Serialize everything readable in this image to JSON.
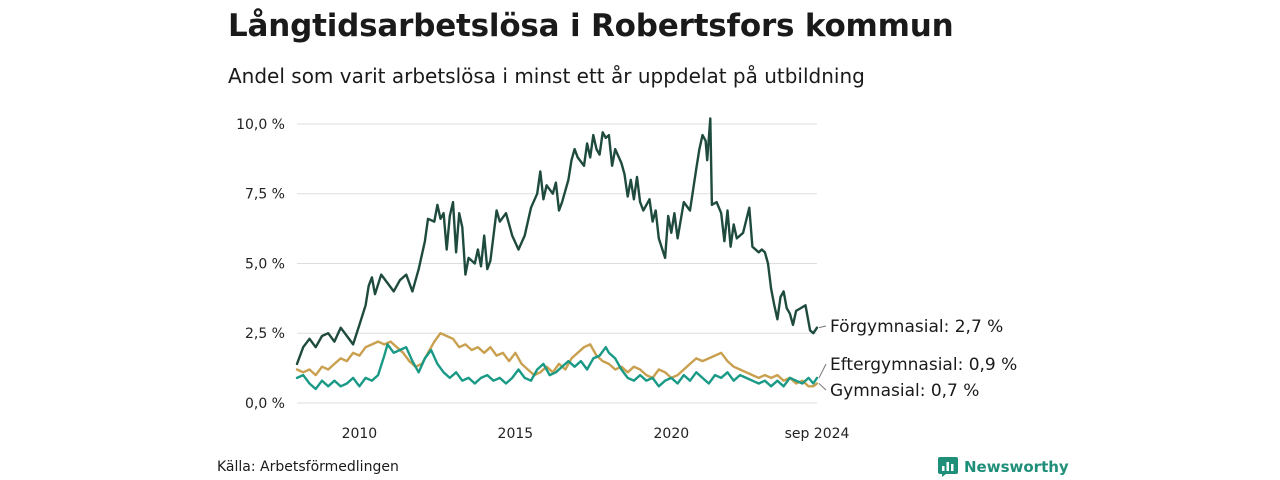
{
  "header": {
    "title": "Långtidsarbetslösa i Robertsfors kommun",
    "subtitle": "Andel som varit arbetslösa i minst ett år uppdelat på utbildning"
  },
  "footer": {
    "source": "Källa: Arbetsförmedlingen",
    "brand": "Newsworthy",
    "brand_icon": "chart-badge-icon"
  },
  "colors": {
    "forgymnasial": "#1f4b3f",
    "eftergymnasial": "#1a9a86",
    "gymnasial": "#c9a04f",
    "grid": "#dddddd"
  },
  "chart_data": {
    "type": "line",
    "ylim": [
      0,
      10.5
    ],
    "y_ticks": [
      {
        "value": 0,
        "label": "0,0 %"
      },
      {
        "value": 2.5,
        "label": "2,5 %"
      },
      {
        "value": 5,
        "label": "5,0 %"
      },
      {
        "value": 7.5,
        "label": "7,5 %"
      },
      {
        "value": 10,
        "label": "10,0 %"
      }
    ],
    "x_ticks": [
      {
        "value": 2010.0,
        "label": "2010"
      },
      {
        "value": 2015.0,
        "label": "2015"
      },
      {
        "value": 2020.0,
        "label": "2020"
      },
      {
        "value": 2024.67,
        "label": "sep 2024"
      }
    ],
    "x_domain": [
      2008.0,
      2024.67
    ],
    "series": [
      {
        "name": "Förgymnasial",
        "end_label": "Förgymnasial: 2,7 %",
        "color_key": "forgymnasial",
        "points": [
          [
            2008.0,
            1.4
          ],
          [
            2008.2,
            2.0
          ],
          [
            2008.4,
            2.3
          ],
          [
            2008.6,
            2.0
          ],
          [
            2008.8,
            2.4
          ],
          [
            2009.0,
            2.5
          ],
          [
            2009.2,
            2.2
          ],
          [
            2009.4,
            2.7
          ],
          [
            2009.6,
            2.4
          ],
          [
            2009.8,
            2.1
          ],
          [
            2010.0,
            2.8
          ],
          [
            2010.2,
            3.5
          ],
          [
            2010.3,
            4.2
          ],
          [
            2010.4,
            4.5
          ],
          [
            2010.5,
            3.9
          ],
          [
            2010.7,
            4.6
          ],
          [
            2010.9,
            4.3
          ],
          [
            2011.1,
            4.0
          ],
          [
            2011.3,
            4.4
          ],
          [
            2011.5,
            4.6
          ],
          [
            2011.7,
            4.0
          ],
          [
            2011.9,
            4.8
          ],
          [
            2012.1,
            5.8
          ],
          [
            2012.2,
            6.6
          ],
          [
            2012.4,
            6.5
          ],
          [
            2012.5,
            7.1
          ],
          [
            2012.6,
            6.6
          ],
          [
            2012.7,
            6.8
          ],
          [
            2012.8,
            5.5
          ],
          [
            2012.9,
            6.7
          ],
          [
            2013.0,
            7.2
          ],
          [
            2013.1,
            5.4
          ],
          [
            2013.2,
            6.8
          ],
          [
            2013.3,
            6.3
          ],
          [
            2013.4,
            4.6
          ],
          [
            2013.5,
            5.2
          ],
          [
            2013.7,
            5.0
          ],
          [
            2013.8,
            5.5
          ],
          [
            2013.9,
            4.9
          ],
          [
            2014.0,
            6.0
          ],
          [
            2014.1,
            4.8
          ],
          [
            2014.2,
            5.1
          ],
          [
            2014.3,
            6.0
          ],
          [
            2014.4,
            6.9
          ],
          [
            2014.5,
            6.5
          ],
          [
            2014.7,
            6.8
          ],
          [
            2014.9,
            6.0
          ],
          [
            2015.1,
            5.5
          ],
          [
            2015.3,
            6.0
          ],
          [
            2015.5,
            7.0
          ],
          [
            2015.7,
            7.5
          ],
          [
            2015.8,
            8.3
          ],
          [
            2015.9,
            7.3
          ],
          [
            2016.0,
            7.8
          ],
          [
            2016.2,
            7.5
          ],
          [
            2016.3,
            7.9
          ],
          [
            2016.4,
            6.9
          ],
          [
            2016.5,
            7.2
          ],
          [
            2016.7,
            8.0
          ],
          [
            2016.8,
            8.7
          ],
          [
            2016.9,
            9.1
          ],
          [
            2017.0,
            8.8
          ],
          [
            2017.2,
            8.5
          ],
          [
            2017.3,
            9.3
          ],
          [
            2017.4,
            8.8
          ],
          [
            2017.5,
            9.6
          ],
          [
            2017.6,
            9.1
          ],
          [
            2017.7,
            8.9
          ],
          [
            2017.8,
            9.7
          ],
          [
            2017.9,
            9.5
          ],
          [
            2018.0,
            9.6
          ],
          [
            2018.1,
            8.5
          ],
          [
            2018.2,
            9.1
          ],
          [
            2018.4,
            8.6
          ],
          [
            2018.5,
            8.2
          ],
          [
            2018.6,
            7.4
          ],
          [
            2018.7,
            8.0
          ],
          [
            2018.8,
            7.3
          ],
          [
            2018.9,
            8.1
          ],
          [
            2019.0,
            7.2
          ],
          [
            2019.1,
            6.9
          ],
          [
            2019.3,
            7.3
          ],
          [
            2019.4,
            6.5
          ],
          [
            2019.5,
            6.9
          ],
          [
            2019.6,
            5.9
          ],
          [
            2019.8,
            5.2
          ],
          [
            2019.9,
            6.7
          ],
          [
            2020.0,
            6.1
          ],
          [
            2020.1,
            6.8
          ],
          [
            2020.2,
            5.9
          ],
          [
            2020.4,
            7.2
          ],
          [
            2020.6,
            6.9
          ],
          [
            2020.8,
            8.4
          ],
          [
            2020.9,
            9.1
          ],
          [
            2021.0,
            9.6
          ],
          [
            2021.1,
            9.4
          ],
          [
            2021.15,
            8.7
          ],
          [
            2021.25,
            10.2
          ],
          [
            2021.3,
            7.1
          ],
          [
            2021.45,
            7.2
          ],
          [
            2021.6,
            6.8
          ],
          [
            2021.7,
            5.8
          ],
          [
            2021.8,
            6.9
          ],
          [
            2021.9,
            5.6
          ],
          [
            2022.0,
            6.4
          ],
          [
            2022.1,
            5.9
          ],
          [
            2022.3,
            6.1
          ],
          [
            2022.5,
            7.0
          ],
          [
            2022.6,
            5.6
          ],
          [
            2022.8,
            5.4
          ],
          [
            2022.9,
            5.5
          ],
          [
            2023.0,
            5.4
          ],
          [
            2023.1,
            5.0
          ],
          [
            2023.2,
            4.1
          ],
          [
            2023.3,
            3.5
          ],
          [
            2023.4,
            3.0
          ],
          [
            2023.5,
            3.8
          ],
          [
            2023.6,
            4.0
          ],
          [
            2023.7,
            3.4
          ],
          [
            2023.8,
            3.2
          ],
          [
            2023.9,
            2.8
          ],
          [
            2024.0,
            3.3
          ],
          [
            2024.15,
            3.4
          ],
          [
            2024.3,
            3.5
          ],
          [
            2024.45,
            2.6
          ],
          [
            2024.55,
            2.5
          ],
          [
            2024.67,
            2.7
          ]
        ]
      },
      {
        "name": "Eftergymnasial",
        "end_label": "Eftergymnasial: 0,9 %",
        "color_key": "eftergymnasial",
        "points": [
          [
            2008.0,
            0.9
          ],
          [
            2008.2,
            1.0
          ],
          [
            2008.4,
            0.7
          ],
          [
            2008.6,
            0.5
          ],
          [
            2008.8,
            0.8
          ],
          [
            2009.0,
            0.6
          ],
          [
            2009.2,
            0.8
          ],
          [
            2009.4,
            0.6
          ],
          [
            2009.6,
            0.7
          ],
          [
            2009.8,
            0.9
          ],
          [
            2010.0,
            0.6
          ],
          [
            2010.2,
            0.9
          ],
          [
            2010.4,
            0.8
          ],
          [
            2010.6,
            1.0
          ],
          [
            2010.8,
            1.7
          ],
          [
            2010.9,
            2.1
          ],
          [
            2011.1,
            1.8
          ],
          [
            2011.3,
            1.9
          ],
          [
            2011.5,
            2.0
          ],
          [
            2011.7,
            1.5
          ],
          [
            2011.9,
            1.1
          ],
          [
            2012.1,
            1.6
          ],
          [
            2012.3,
            1.9
          ],
          [
            2012.5,
            1.4
          ],
          [
            2012.7,
            1.1
          ],
          [
            2012.9,
            0.9
          ],
          [
            2013.1,
            1.1
          ],
          [
            2013.3,
            0.8
          ],
          [
            2013.5,
            0.9
          ],
          [
            2013.7,
            0.7
          ],
          [
            2013.9,
            0.9
          ],
          [
            2014.1,
            1.0
          ],
          [
            2014.3,
            0.8
          ],
          [
            2014.5,
            0.9
          ],
          [
            2014.7,
            0.7
          ],
          [
            2014.9,
            0.9
          ],
          [
            2015.1,
            1.2
          ],
          [
            2015.3,
            0.9
          ],
          [
            2015.5,
            0.8
          ],
          [
            2015.7,
            1.2
          ],
          [
            2015.9,
            1.4
          ],
          [
            2016.1,
            1.0
          ],
          [
            2016.3,
            1.1
          ],
          [
            2016.5,
            1.3
          ],
          [
            2016.7,
            1.5
          ],
          [
            2016.9,
            1.3
          ],
          [
            2017.1,
            1.5
          ],
          [
            2017.3,
            1.2
          ],
          [
            2017.5,
            1.6
          ],
          [
            2017.7,
            1.7
          ],
          [
            2017.9,
            2.0
          ],
          [
            2018.0,
            1.8
          ],
          [
            2018.2,
            1.6
          ],
          [
            2018.4,
            1.2
          ],
          [
            2018.6,
            0.9
          ],
          [
            2018.8,
            0.8
          ],
          [
            2019.0,
            1.0
          ],
          [
            2019.2,
            0.8
          ],
          [
            2019.4,
            0.9
          ],
          [
            2019.6,
            0.6
          ],
          [
            2019.8,
            0.8
          ],
          [
            2020.0,
            0.9
          ],
          [
            2020.2,
            0.7
          ],
          [
            2020.4,
            1.0
          ],
          [
            2020.6,
            0.8
          ],
          [
            2020.8,
            1.1
          ],
          [
            2021.0,
            0.9
          ],
          [
            2021.2,
            0.7
          ],
          [
            2021.4,
            1.0
          ],
          [
            2021.6,
            0.9
          ],
          [
            2021.8,
            1.1
          ],
          [
            2022.0,
            0.8
          ],
          [
            2022.2,
            1.0
          ],
          [
            2022.4,
            0.9
          ],
          [
            2022.6,
            0.8
          ],
          [
            2022.8,
            0.7
          ],
          [
            2023.0,
            0.8
          ],
          [
            2023.2,
            0.6
          ],
          [
            2023.4,
            0.8
          ],
          [
            2023.6,
            0.6
          ],
          [
            2023.8,
            0.9
          ],
          [
            2024.0,
            0.8
          ],
          [
            2024.2,
            0.7
          ],
          [
            2024.4,
            0.9
          ],
          [
            2024.55,
            0.7
          ],
          [
            2024.67,
            0.9
          ]
        ]
      },
      {
        "name": "Gymnasial",
        "end_label": "Gymnasial: 0,7 %",
        "color_key": "gymnasial",
        "points": [
          [
            2008.0,
            1.2
          ],
          [
            2008.2,
            1.1
          ],
          [
            2008.4,
            1.2
          ],
          [
            2008.6,
            1.0
          ],
          [
            2008.8,
            1.3
          ],
          [
            2009.0,
            1.2
          ],
          [
            2009.2,
            1.4
          ],
          [
            2009.4,
            1.6
          ],
          [
            2009.6,
            1.5
          ],
          [
            2009.8,
            1.8
          ],
          [
            2010.0,
            1.7
          ],
          [
            2010.2,
            2.0
          ],
          [
            2010.4,
            2.1
          ],
          [
            2010.6,
            2.2
          ],
          [
            2010.8,
            2.1
          ],
          [
            2011.0,
            2.2
          ],
          [
            2011.2,
            2.0
          ],
          [
            2011.4,
            1.8
          ],
          [
            2011.6,
            1.5
          ],
          [
            2011.8,
            1.3
          ],
          [
            2012.0,
            1.4
          ],
          [
            2012.2,
            1.8
          ],
          [
            2012.4,
            2.2
          ],
          [
            2012.6,
            2.5
          ],
          [
            2012.8,
            2.4
          ],
          [
            2013.0,
            2.3
          ],
          [
            2013.2,
            2.0
          ],
          [
            2013.4,
            2.1
          ],
          [
            2013.6,
            1.9
          ],
          [
            2013.8,
            2.0
          ],
          [
            2014.0,
            1.8
          ],
          [
            2014.2,
            2.0
          ],
          [
            2014.4,
            1.7
          ],
          [
            2014.6,
            1.8
          ],
          [
            2014.8,
            1.5
          ],
          [
            2015.0,
            1.8
          ],
          [
            2015.2,
            1.4
          ],
          [
            2015.4,
            1.2
          ],
          [
            2015.6,
            1.0
          ],
          [
            2015.8,
            1.1
          ],
          [
            2016.0,
            1.3
          ],
          [
            2016.2,
            1.1
          ],
          [
            2016.4,
            1.4
          ],
          [
            2016.6,
            1.2
          ],
          [
            2016.8,
            1.6
          ],
          [
            2017.0,
            1.8
          ],
          [
            2017.2,
            2.0
          ],
          [
            2017.4,
            2.1
          ],
          [
            2017.6,
            1.7
          ],
          [
            2017.8,
            1.5
          ],
          [
            2018.0,
            1.4
          ],
          [
            2018.2,
            1.2
          ],
          [
            2018.4,
            1.3
          ],
          [
            2018.6,
            1.1
          ],
          [
            2018.8,
            1.3
          ],
          [
            2019.0,
            1.2
          ],
          [
            2019.2,
            1.0
          ],
          [
            2019.4,
            0.9
          ],
          [
            2019.6,
            1.2
          ],
          [
            2019.8,
            1.1
          ],
          [
            2020.0,
            0.9
          ],
          [
            2020.2,
            1.0
          ],
          [
            2020.4,
            1.2
          ],
          [
            2020.6,
            1.4
          ],
          [
            2020.8,
            1.6
          ],
          [
            2021.0,
            1.5
          ],
          [
            2021.2,
            1.6
          ],
          [
            2021.4,
            1.7
          ],
          [
            2021.6,
            1.8
          ],
          [
            2021.8,
            1.5
          ],
          [
            2022.0,
            1.3
          ],
          [
            2022.2,
            1.2
          ],
          [
            2022.4,
            1.1
          ],
          [
            2022.6,
            1.0
          ],
          [
            2022.8,
            0.9
          ],
          [
            2023.0,
            1.0
          ],
          [
            2023.2,
            0.9
          ],
          [
            2023.4,
            1.0
          ],
          [
            2023.6,
            0.8
          ],
          [
            2023.8,
            0.9
          ],
          [
            2024.0,
            0.7
          ],
          [
            2024.2,
            0.8
          ],
          [
            2024.4,
            0.6
          ],
          [
            2024.55,
            0.6
          ],
          [
            2024.67,
            0.7
          ]
        ]
      }
    ]
  }
}
